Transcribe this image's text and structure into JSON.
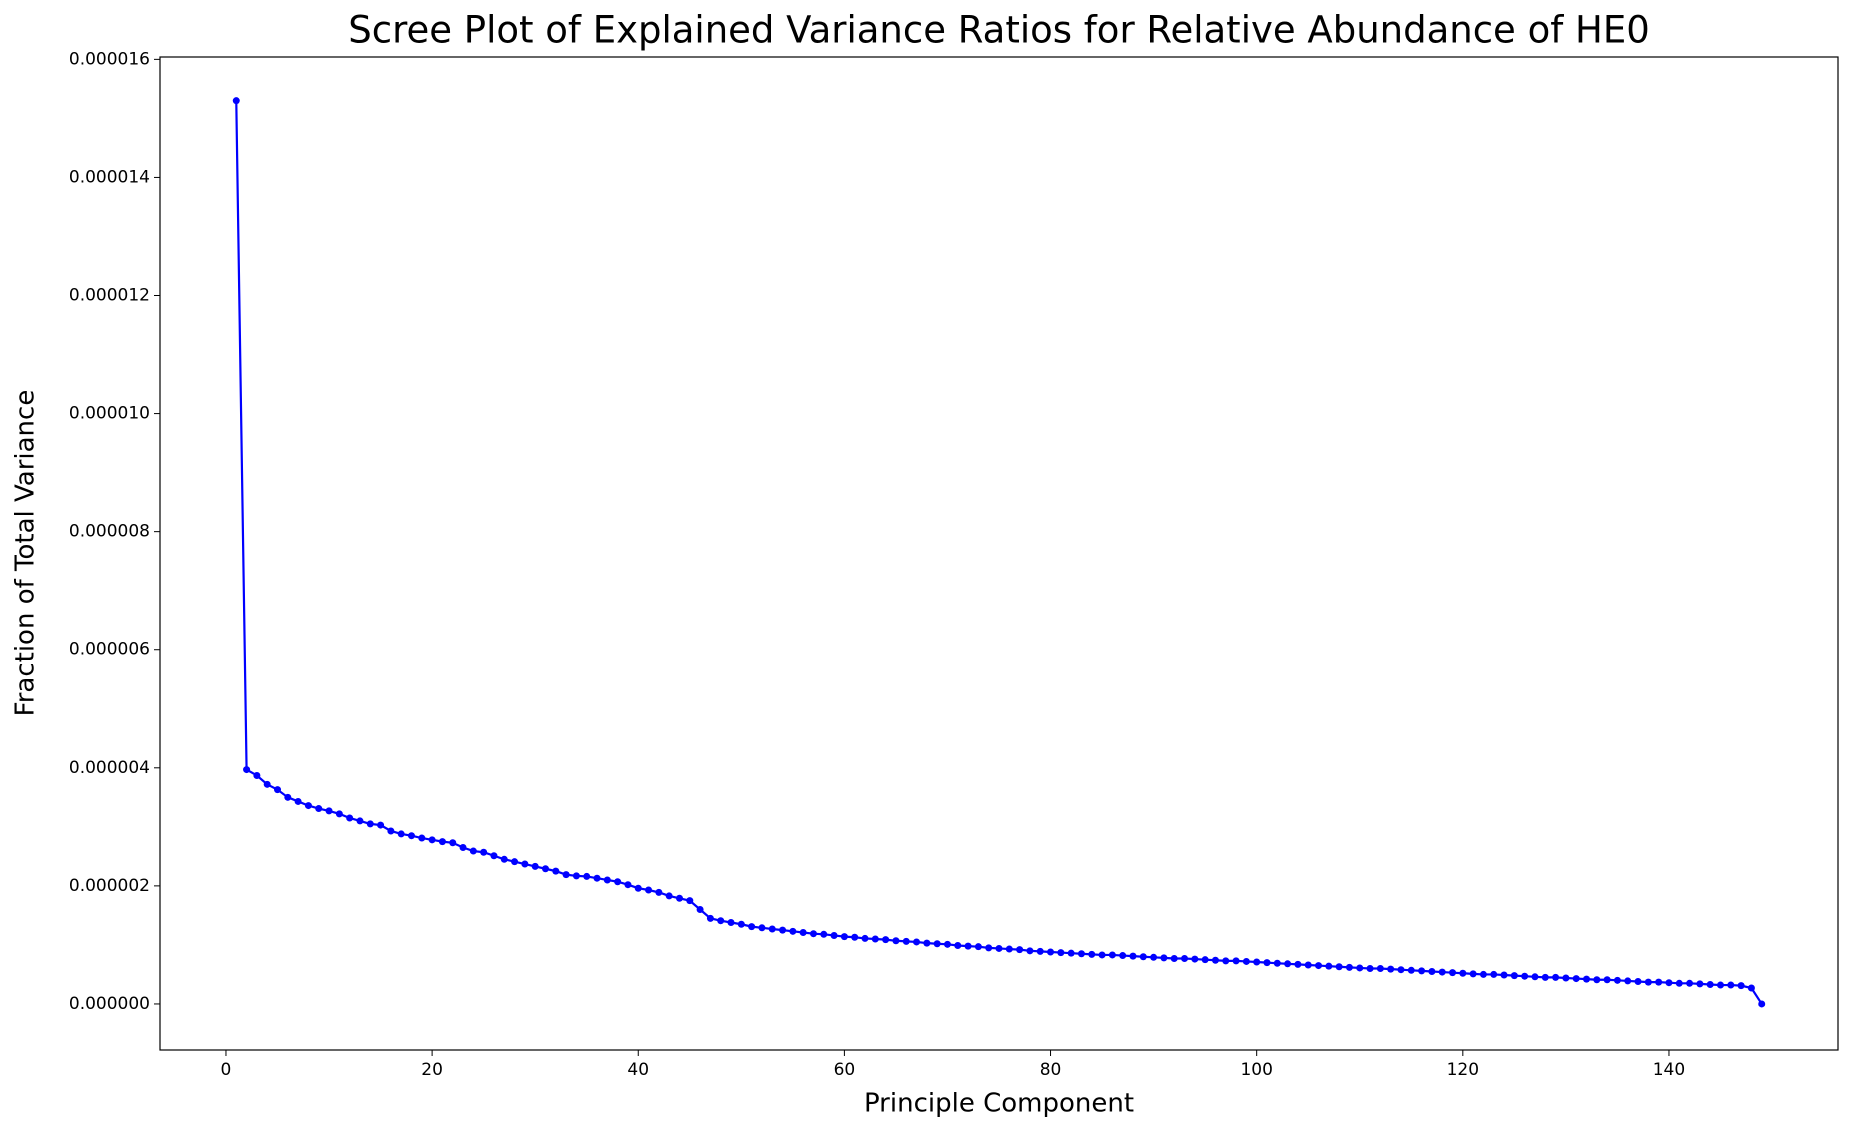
{
  "chart_data": {
    "type": "line",
    "title": "Scree Plot of Explained Variance Ratios for Relative Abundance of HE0",
    "x_label": "Principle Component",
    "y_label": "Fraction of Total Variance",
    "x": [
      1,
      2,
      3,
      4,
      5,
      6,
      7,
      8,
      9,
      10,
      11,
      12,
      13,
      14,
      15,
      16,
      17,
      18,
      19,
      20,
      21,
      22,
      23,
      24,
      25,
      26,
      27,
      28,
      29,
      30,
      31,
      32,
      33,
      34,
      35,
      36,
      37,
      38,
      39,
      40,
      41,
      42,
      43,
      44,
      45,
      46,
      47,
      48,
      49,
      50,
      51,
      52,
      53,
      54,
      55,
      56,
      57,
      58,
      59,
      60,
      61,
      62,
      63,
      64,
      65,
      66,
      67,
      68,
      69,
      70,
      71,
      72,
      73,
      74,
      75,
      76,
      77,
      78,
      79,
      80,
      81,
      82,
      83,
      84,
      85,
      86,
      87,
      88,
      89,
      90,
      91,
      92,
      93,
      94,
      95,
      96,
      97,
      98,
      99,
      100,
      101,
      102,
      103,
      104,
      105,
      106,
      107,
      108,
      109,
      110,
      111,
      112,
      113,
      114,
      115,
      116,
      117,
      118,
      119,
      120,
      121,
      122,
      123,
      124,
      125,
      126,
      127,
      128,
      129,
      130,
      131,
      132,
      133,
      134,
      135,
      136,
      137,
      138,
      139,
      140,
      141,
      142,
      143,
      144,
      145,
      146,
      147,
      148,
      149
    ],
    "series": [
      {
        "color": "#0000ff",
        "values": [
          1.53e-05,
          3.97e-06,
          3.87e-06,
          3.72e-06,
          3.63e-06,
          3.5e-06,
          3.43e-06,
          3.36e-06,
          3.31e-06,
          3.27e-06,
          3.22e-06,
          3.15e-06,
          3.1e-06,
          3.05e-06,
          3.03e-06,
          2.93e-06,
          2.88e-06,
          2.85e-06,
          2.81e-06,
          2.78e-06,
          2.75e-06,
          2.73e-06,
          2.65e-06,
          2.59e-06,
          2.57e-06,
          2.51e-06,
          2.45e-06,
          2.41e-06,
          2.37e-06,
          2.33e-06,
          2.29e-06,
          2.25e-06,
          2.19e-06,
          2.17e-06,
          2.16e-06,
          2.13e-06,
          2.1e-06,
          2.07e-06,
          2.02e-06,
          1.96e-06,
          1.93e-06,
          1.89e-06,
          1.83e-06,
          1.79e-06,
          1.75e-06,
          1.6e-06,
          1.45e-06,
          1.41e-06,
          1.38e-06,
          1.35e-06,
          1.31e-06,
          1.29e-06,
          1.27e-06,
          1.25e-06,
          1.23e-06,
          1.21e-06,
          1.19e-06,
          1.18e-06,
          1.16e-06,
          1.14e-06,
          1.13e-06,
          1.11e-06,
          1.1e-06,
          1.09e-06,
          1.07e-06,
          1.06e-06,
          1.05e-06,
          1.03e-06,
          1.02e-06,
          1.01e-06,
          9.9e-07,
          9.8e-07,
          9.7e-07,
          9.5e-07,
          9.4e-07,
          9.3e-07,
          9.2e-07,
          9e-07,
          8.9e-07,
          8.8e-07,
          8.7e-07,
          8.6e-07,
          8.5e-07,
          8.4e-07,
          8.3e-07,
          8.3e-07,
          8.2e-07,
          8.1e-07,
          8e-07,
          7.9e-07,
          7.8e-07,
          7.7e-07,
          7.7e-07,
          7.6e-07,
          7.5e-07,
          7.4e-07,
          7.3e-07,
          7.3e-07,
          7.2e-07,
          7.1e-07,
          7e-07,
          6.9e-07,
          6.8e-07,
          6.7e-07,
          6.6e-07,
          6.5e-07,
          6.4e-07,
          6.3e-07,
          6.2e-07,
          6.1e-07,
          6e-07,
          6e-07,
          5.9e-07,
          5.8e-07,
          5.7e-07,
          5.6e-07,
          5.5e-07,
          5.4e-07,
          5.3e-07,
          5.2e-07,
          5.1e-07,
          5e-07,
          5e-07,
          4.9e-07,
          4.8e-07,
          4.7e-07,
          4.6e-07,
          4.5e-07,
          4.5e-07,
          4.4e-07,
          4.3e-07,
          4.2e-07,
          4.1e-07,
          4.1e-07,
          4e-07,
          3.9e-07,
          3.8e-07,
          3.7e-07,
          3.7e-07,
          3.6e-07,
          3.5e-07,
          3.5e-07,
          3.4e-07,
          3.3e-07,
          3.2e-07,
          3.2e-07,
          3.1e-07,
          2.7e-07,
          0.0
        ]
      }
    ],
    "xlim": [
      -6.4,
      156.4
    ],
    "ylim": [
      -7.8e-07,
      1.604e-05
    ],
    "xticks": [
      0,
      20,
      40,
      60,
      80,
      100,
      120,
      140
    ],
    "yticks": [
      {
        "value": 0,
        "label": "0.000000"
      },
      {
        "value": 2e-06,
        "label": "0.000002"
      },
      {
        "value": 4e-06,
        "label": "0.000004"
      },
      {
        "value": 6e-06,
        "label": "0.000006"
      },
      {
        "value": 8e-06,
        "label": "0.000008"
      },
      {
        "value": 1e-05,
        "label": "0.000010"
      },
      {
        "value": 1.2e-05,
        "label": "0.000012"
      },
      {
        "value": 1.4e-05,
        "label": "0.000014"
      },
      {
        "value": 1.6e-05,
        "label": "0.000016"
      }
    ],
    "markers": true
  }
}
